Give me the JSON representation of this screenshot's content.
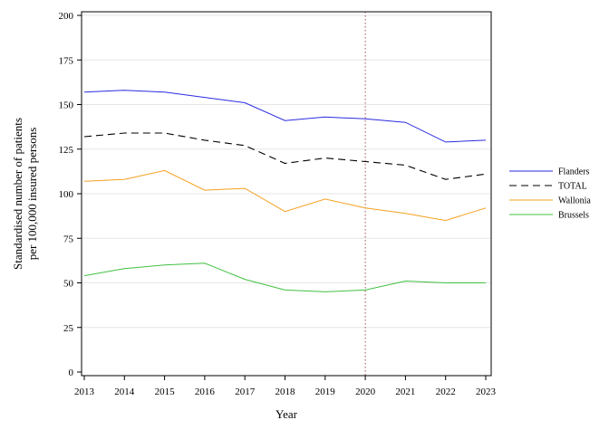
{
  "chart_data": {
    "type": "line",
    "xlabel": "Year",
    "ylabel_lines": [
      "Standardised number of patients",
      "per 100,000 insured persons"
    ],
    "x": [
      2013,
      2014,
      2015,
      2016,
      2017,
      2018,
      2019,
      2020,
      2021,
      2022,
      2023
    ],
    "xlim": [
      2013,
      2023
    ],
    "ylim": [
      0,
      200
    ],
    "yticks": [
      0,
      25,
      50,
      75,
      100,
      125,
      150,
      175,
      200
    ],
    "grid": "horizontal",
    "legend_position": "right",
    "reference_line": {
      "x": 2020,
      "color": "#a05050",
      "style": "dotted"
    },
    "series": [
      {
        "name": "Flanders",
        "color": "#2a2ae0",
        "dash": "solid",
        "values": [
          157,
          158,
          157,
          154,
          151,
          141,
          143,
          142,
          140,
          129,
          130
        ]
      },
      {
        "name": "TOTAL",
        "color": "#000000",
        "dash": "dashed",
        "values": [
          132,
          134,
          134,
          130,
          127,
          117,
          120,
          118,
          116,
          108,
          111
        ]
      },
      {
        "name": "Wallonia",
        "color": "#f5a020",
        "dash": "solid",
        "values": [
          107,
          108,
          113,
          102,
          103,
          90,
          97,
          92,
          89,
          85,
          92
        ]
      },
      {
        "name": "Brussels",
        "color": "#40c040",
        "dash": "solid",
        "values": [
          54,
          58,
          60,
          61,
          52,
          46,
          45,
          46,
          51,
          50,
          50
        ]
      }
    ]
  }
}
